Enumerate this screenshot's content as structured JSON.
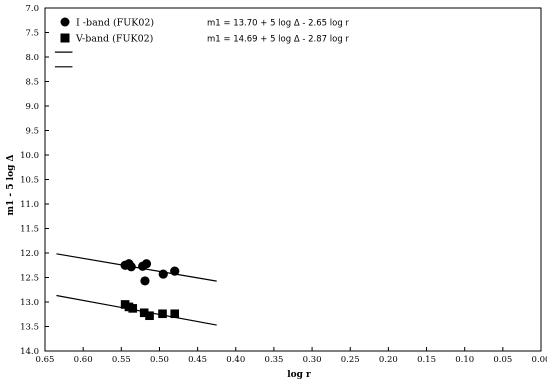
{
  "chart_data": {
    "type": "scatter",
    "xlabel": "log r",
    "ylabel": "m1 - 5 log Δ",
    "xlim": [
      0.65,
      0.0
    ],
    "ylim": [
      7.0,
      14.0
    ],
    "y_inverted": true,
    "x_ticks": [
      "0.65",
      "0.60",
      "0.55",
      "0.50",
      "0.45",
      "0.40",
      "0.35",
      "0.30",
      "0.25",
      "0.20",
      "0.15",
      "0.10",
      "0.05",
      "0.00"
    ],
    "y_ticks": [
      "7.0",
      "7.5",
      "8.0",
      "8.5",
      "9.0",
      "9.5",
      "10.0",
      "10.5",
      "11.0",
      "11.5",
      "12.0",
      "12.5",
      "13.0",
      "13.5",
      "14.0"
    ],
    "grid": false,
    "legend_placement": "top-left",
    "series": [
      {
        "name": "I -band (FUK02)",
        "marker": "circle",
        "formula": "m1 = 13.70 + 5 log Δ - 2.65 log r",
        "fit_intercept": 13.7,
        "fit_slope": -2.65,
        "points": [
          {
            "x": 0.545,
            "y": 12.25
          },
          {
            "x": 0.54,
            "y": 12.22
          },
          {
            "x": 0.537,
            "y": 12.28
          },
          {
            "x": 0.522,
            "y": 12.27
          },
          {
            "x": 0.517,
            "y": 12.22
          },
          {
            "x": 0.519,
            "y": 12.57
          },
          {
            "x": 0.495,
            "y": 12.43
          },
          {
            "x": 0.48,
            "y": 12.37
          }
        ]
      },
      {
        "name": "V-band (FUK02)",
        "marker": "square",
        "formula": "m1 = 14.69 + 5 log Δ - 2.87 log r",
        "fit_intercept": 14.69,
        "fit_slope": -2.87,
        "points": [
          {
            "x": 0.545,
            "y": 13.05
          },
          {
            "x": 0.54,
            "y": 13.1
          },
          {
            "x": 0.535,
            "y": 13.13
          },
          {
            "x": 0.52,
            "y": 13.22
          },
          {
            "x": 0.513,
            "y": 13.28
          },
          {
            "x": 0.496,
            "y": 13.24
          },
          {
            "x": 0.48,
            "y": 13.24
          }
        ]
      }
    ],
    "fit_x_range": [
      0.635,
      0.425
    ],
    "marker_lines_y": [
      7.9,
      8.2
    ]
  }
}
